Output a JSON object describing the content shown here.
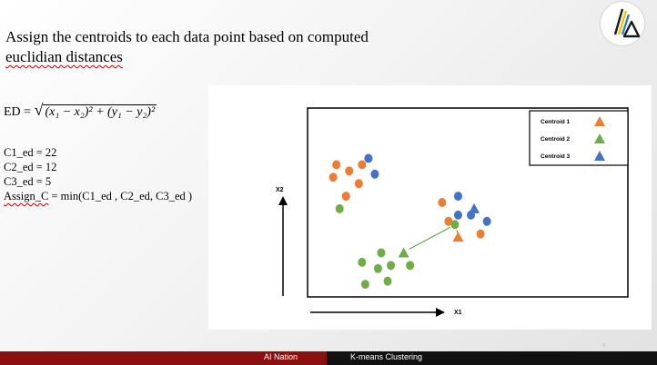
{
  "slide": {
    "title_line1": "Assign the centroids to each data point based on computed",
    "title_line2": "euclidian distances",
    "formula_lhs": "ED =",
    "formula_rhs": "(x₁ − x₂)² + (y₁ − y₂)²",
    "c1": "C1_ed = 22",
    "c2": "C2_ed = 12",
    "c3": "C3_ed = 5",
    "assign_prefix": "Assign_C",
    "assign_rest": " = min(C1_ed , C2_ed, C3_ed )",
    "page_number": "8"
  },
  "footer": {
    "left": "AI Nation",
    "right": "K-means Clustering"
  },
  "logo": {
    "icon": "ai-nation-logo-icon"
  },
  "chart_data": {
    "type": "scatter",
    "xlabel": "X1",
    "ylabel": "X2",
    "grid": false,
    "legend_position": "top-right",
    "legend": [
      {
        "label": "Centroid 1",
        "color": "#ED7D31",
        "marker": "triangle"
      },
      {
        "label": "Centroid 2",
        "color": "#70AD47",
        "marker": "triangle"
      },
      {
        "label": "Centroid 3",
        "color": "#4472C4",
        "marker": "triangle"
      }
    ],
    "series": [
      {
        "color": "#ED7D31",
        "points": [
          [
            9,
            21
          ],
          [
            13,
            20
          ],
          [
            17,
            21
          ],
          [
            8,
            19
          ],
          [
            16,
            18
          ],
          [
            12,
            16
          ],
          [
            42,
            15
          ],
          [
            44,
            12
          ],
          [
            54,
            10
          ]
        ]
      },
      {
        "color": "#4472C4",
        "points": [
          [
            19,
            22
          ],
          [
            21,
            19.5
          ],
          [
            47,
            16
          ],
          [
            47,
            13
          ],
          [
            51,
            13
          ],
          [
            56,
            12
          ]
        ]
      },
      {
        "color": "#70AD47",
        "points": [
          [
            10,
            14
          ],
          [
            23,
            7
          ],
          [
            17,
            5.5
          ],
          [
            26,
            5
          ],
          [
            22,
            4.5
          ],
          [
            32,
            5
          ],
          [
            18,
            2
          ],
          [
            25,
            2.5
          ],
          [
            46,
            11.5
          ]
        ]
      }
    ],
    "centroids": [
      {
        "x": 47,
        "y": 9.5,
        "color": "#ED7D31"
      },
      {
        "x": 30,
        "y": 7,
        "color": "#70AD47"
      },
      {
        "x": 52,
        "y": 14,
        "color": "#4472C4"
      }
    ],
    "xlim": [
      0,
      100
    ],
    "ylim": [
      0,
      30
    ]
  }
}
